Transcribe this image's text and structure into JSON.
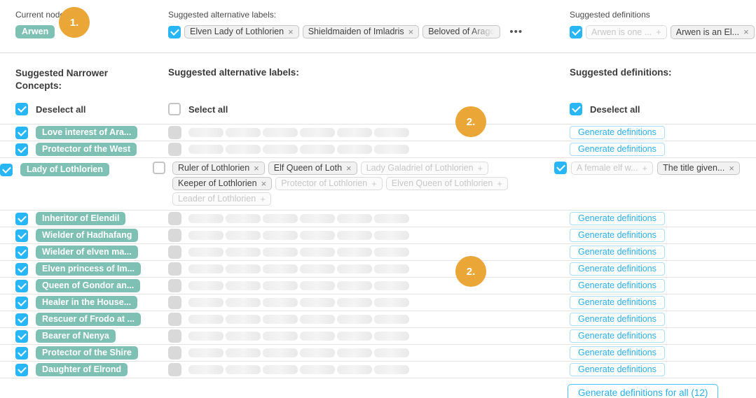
{
  "colors": {
    "accent_blue": "#29b6f6",
    "concept_teal": "#7ec0b4",
    "badge_orange": "#eaa636",
    "button_blue": "#2aafe8",
    "skeleton_gray": "#ebebeb"
  },
  "badges": {
    "step1": "1.",
    "step2": "2."
  },
  "top": {
    "current_node": {
      "label": "Current node",
      "value": "Arwen"
    },
    "alt_labels": {
      "heading": "Suggested alternative labels:",
      "chips": [
        {
          "label": "Elven Lady of Lothlorien",
          "icon": "x"
        },
        {
          "label": "Shieldmaiden of Imladris",
          "icon": "x"
        },
        {
          "label": "Beloved of Arago",
          "fade": true
        }
      ],
      "more": "•••"
    },
    "definitions": {
      "heading": "Suggested definitions",
      "chips": [
        {
          "label": "Arwen is one ...",
          "icon": "+",
          "muted": true
        },
        {
          "label": "Arwen is an El...",
          "icon": "x"
        },
        {
          "label": "",
          "cut": true
        }
      ]
    }
  },
  "table": {
    "headers": {
      "narrower": "Suggested Narrower Concepts:",
      "alt_labels": "Suggested alternative labels:",
      "definitions": "Suggested definitions:"
    },
    "select_controls": {
      "narrower_deselect": "Deselect all",
      "alt_select": "Select all",
      "definitions_deselect": "Deselect all"
    },
    "generate_button_label": "Generate definitions",
    "generate_all_button_label": "Generate definitions for all (12)",
    "rows": [
      {
        "label": "Love interest of Ara...",
        "alt": "skeleton",
        "def": "button"
      },
      {
        "label": "Protector of the West",
        "alt": "skeleton",
        "def": "button"
      },
      {
        "label": "Lady of Lothlorien",
        "alt": "chips",
        "def": "chips",
        "alt_chips": [
          [
            {
              "label": "Ruler of Lothlorien",
              "icon": "x"
            },
            {
              "label": "Elf Queen of Loth",
              "icon": "x"
            },
            {
              "label": "Lady Galadriel of Lothlorien",
              "icon": "+",
              "muted": true
            }
          ],
          [
            {
              "label": "Keeper of Lothlorien",
              "icon": "x"
            },
            {
              "label": "Protector of Lothlorien",
              "icon": "+",
              "muted": true
            },
            {
              "label": "Elven Queen of Lothlorien",
              "icon": "+",
              "muted": true
            }
          ],
          [
            {
              "label": "Leader of Lothlorien",
              "icon": "+",
              "muted": true
            }
          ]
        ],
        "def_chips": [
          {
            "label": "A female elf w...",
            "icon": "+",
            "muted": true
          },
          {
            "label": "The title given...",
            "icon": "x"
          }
        ]
      },
      {
        "label": "Inheritor of Elendil",
        "alt": "skeleton",
        "def": "button"
      },
      {
        "label": "Wielder of Hadhafang",
        "alt": "skeleton",
        "def": "button"
      },
      {
        "label": "Wielder of elven ma...",
        "alt": "skeleton",
        "def": "button"
      },
      {
        "label": "Elven princess of Im...",
        "alt": "skeleton",
        "def": "button"
      },
      {
        "label": "Queen of Gondor an...",
        "alt": "skeleton",
        "def": "button"
      },
      {
        "label": "Healer in the House...",
        "alt": "skeleton",
        "def": "button"
      },
      {
        "label": "Rescuer of Frodo at ...",
        "alt": "skeleton",
        "def": "button"
      },
      {
        "label": "Bearer of Nenya",
        "alt": "skeleton",
        "def": "button"
      },
      {
        "label": "Protector of the Shire",
        "alt": "skeleton",
        "def": "button"
      },
      {
        "label": "Daughter of Elrond",
        "alt": "skeleton",
        "def": "button"
      }
    ]
  }
}
